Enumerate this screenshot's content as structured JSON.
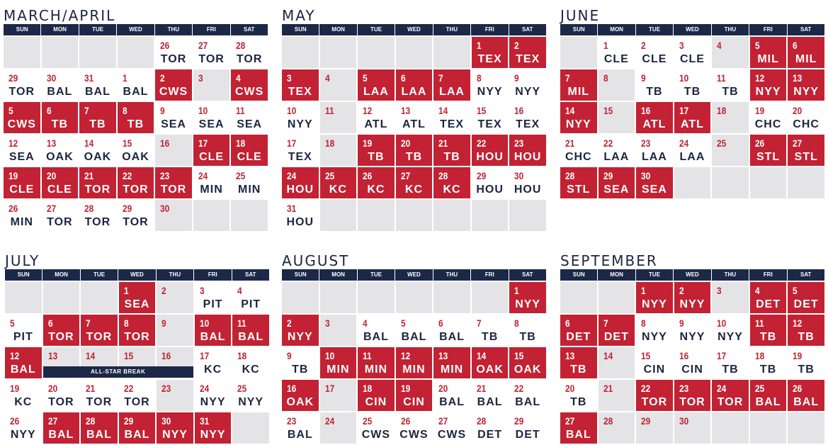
{
  "weekdays": [
    "SUN",
    "MON",
    "TUE",
    "WED",
    "THU",
    "FRI",
    "SAT"
  ],
  "months": [
    {
      "title": "MARCH/APRIL",
      "rows": [
        [
          null,
          null,
          null,
          null,
          {
            "d": "26",
            "o": "TOR",
            "h": false
          },
          {
            "d": "27",
            "o": "TOR",
            "h": false
          },
          {
            "d": "28",
            "o": "TOR",
            "h": false
          }
        ],
        [
          {
            "d": "29",
            "o": "TOR",
            "h": false
          },
          {
            "d": "30",
            "o": "BAL",
            "h": false
          },
          {
            "d": "31",
            "o": "BAL",
            "h": false
          },
          {
            "d": "1",
            "o": "BAL",
            "h": false
          },
          {
            "d": "2",
            "o": "CWS",
            "h": true
          },
          {
            "d": "3",
            "o": "",
            "h": false,
            "off": true
          },
          {
            "d": "4",
            "o": "CWS",
            "h": true
          }
        ],
        [
          {
            "d": "5",
            "o": "CWS",
            "h": true
          },
          {
            "d": "6",
            "o": "TB",
            "h": true
          },
          {
            "d": "7",
            "o": "TB",
            "h": true
          },
          {
            "d": "8",
            "o": "TB",
            "h": true
          },
          {
            "d": "9",
            "o": "SEA",
            "h": false
          },
          {
            "d": "10",
            "o": "SEA",
            "h": false
          },
          {
            "d": "11",
            "o": "SEA",
            "h": false
          }
        ],
        [
          {
            "d": "12",
            "o": "SEA",
            "h": false
          },
          {
            "d": "13",
            "o": "OAK",
            "h": false
          },
          {
            "d": "14",
            "o": "OAK",
            "h": false
          },
          {
            "d": "15",
            "o": "OAK",
            "h": false
          },
          {
            "d": "16",
            "o": "",
            "h": false,
            "off": true
          },
          {
            "d": "17",
            "o": "CLE",
            "h": true
          },
          {
            "d": "18",
            "o": "CLE",
            "h": true
          }
        ],
        [
          {
            "d": "19",
            "o": "CLE",
            "h": true
          },
          {
            "d": "20",
            "o": "CLE",
            "h": true
          },
          {
            "d": "21",
            "o": "TOR",
            "h": true
          },
          {
            "d": "22",
            "o": "TOR",
            "h": true
          },
          {
            "d": "23",
            "o": "TOR",
            "h": true
          },
          {
            "d": "24",
            "o": "MIN",
            "h": false
          },
          {
            "d": "25",
            "o": "MIN",
            "h": false
          }
        ],
        [
          {
            "d": "26",
            "o": "MIN",
            "h": false
          },
          {
            "d": "27",
            "o": "TOR",
            "h": false
          },
          {
            "d": "28",
            "o": "TOR",
            "h": false
          },
          {
            "d": "29",
            "o": "TOR",
            "h": false
          },
          {
            "d": "30",
            "o": "",
            "h": false,
            "off": true
          },
          null,
          null
        ]
      ]
    },
    {
      "title": "MAY",
      "rows": [
        [
          null,
          null,
          null,
          null,
          null,
          {
            "d": "1",
            "o": "TEX",
            "h": true
          },
          {
            "d": "2",
            "o": "TEX",
            "h": true
          }
        ],
        [
          {
            "d": "3",
            "o": "TEX",
            "h": true
          },
          {
            "d": "4",
            "o": "",
            "h": false,
            "off": true
          },
          {
            "d": "5",
            "o": "LAA",
            "h": true
          },
          {
            "d": "6",
            "o": "LAA",
            "h": true
          },
          {
            "d": "7",
            "o": "LAA",
            "h": true
          },
          {
            "d": "8",
            "o": "NYY",
            "h": false
          },
          {
            "d": "9",
            "o": "NYY",
            "h": false
          }
        ],
        [
          {
            "d": "10",
            "o": "NYY",
            "h": false
          },
          {
            "d": "11",
            "o": "",
            "h": false,
            "off": true
          },
          {
            "d": "12",
            "o": "ATL",
            "h": false
          },
          {
            "d": "13",
            "o": "ATL",
            "h": false
          },
          {
            "d": "14",
            "o": "TEX",
            "h": false
          },
          {
            "d": "15",
            "o": "TEX",
            "h": false
          },
          {
            "d": "16",
            "o": "TEX",
            "h": false
          }
        ],
        [
          {
            "d": "17",
            "o": "TEX",
            "h": false
          },
          {
            "d": "18",
            "o": "",
            "h": false,
            "off": true
          },
          {
            "d": "19",
            "o": "TB",
            "h": true
          },
          {
            "d": "20",
            "o": "TB",
            "h": true
          },
          {
            "d": "21",
            "o": "TB",
            "h": true
          },
          {
            "d": "22",
            "o": "HOU",
            "h": true
          },
          {
            "d": "23",
            "o": "HOU",
            "h": true
          }
        ],
        [
          {
            "d": "24",
            "o": "HOU",
            "h": true
          },
          {
            "d": "25",
            "o": "KC",
            "h": true
          },
          {
            "d": "26",
            "o": "KC",
            "h": true
          },
          {
            "d": "27",
            "o": "KC",
            "h": true
          },
          {
            "d": "28",
            "o": "KC",
            "h": true
          },
          {
            "d": "29",
            "o": "HOU",
            "h": false
          },
          {
            "d": "30",
            "o": "HOU",
            "h": false
          }
        ],
        [
          {
            "d": "31",
            "o": "HOU",
            "h": false
          },
          null,
          null,
          null,
          null,
          null,
          null
        ]
      ]
    },
    {
      "title": "JUNE",
      "rows": [
        [
          null,
          {
            "d": "1",
            "o": "CLE",
            "h": false
          },
          {
            "d": "2",
            "o": "CLE",
            "h": false
          },
          {
            "d": "3",
            "o": "CLE",
            "h": false
          },
          {
            "d": "4",
            "o": "",
            "h": false,
            "off": true
          },
          {
            "d": "5",
            "o": "MIL",
            "h": true
          },
          {
            "d": "6",
            "o": "MIL",
            "h": true
          }
        ],
        [
          {
            "d": "7",
            "o": "MIL",
            "h": true
          },
          {
            "d": "8",
            "o": "",
            "h": false,
            "off": true
          },
          {
            "d": "9",
            "o": "TB",
            "h": false
          },
          {
            "d": "10",
            "o": "TB",
            "h": false
          },
          {
            "d": "11",
            "o": "TB",
            "h": false
          },
          {
            "d": "12",
            "o": "NYY",
            "h": true
          },
          {
            "d": "13",
            "o": "NYY",
            "h": true
          }
        ],
        [
          {
            "d": "14",
            "o": "NYY",
            "h": true
          },
          {
            "d": "15",
            "o": "",
            "h": false,
            "off": true
          },
          {
            "d": "16",
            "o": "ATL",
            "h": true
          },
          {
            "d": "17",
            "o": "ATL",
            "h": true
          },
          {
            "d": "18",
            "o": "",
            "h": false,
            "off": true
          },
          {
            "d": "19",
            "o": "CHC",
            "h": false
          },
          {
            "d": "20",
            "o": "CHC",
            "h": false
          }
        ],
        [
          {
            "d": "21",
            "o": "CHC",
            "h": false
          },
          {
            "d": "22",
            "o": "LAA",
            "h": false
          },
          {
            "d": "23",
            "o": "LAA",
            "h": false
          },
          {
            "d": "24",
            "o": "LAA",
            "h": false
          },
          {
            "d": "25",
            "o": "",
            "h": false,
            "off": true
          },
          {
            "d": "26",
            "o": "STL",
            "h": true
          },
          {
            "d": "27",
            "o": "STL",
            "h": true
          }
        ],
        [
          {
            "d": "28",
            "o": "STL",
            "h": true
          },
          {
            "d": "29",
            "o": "SEA",
            "h": true
          },
          {
            "d": "30",
            "o": "SEA",
            "h": true
          },
          null,
          null,
          null,
          null
        ]
      ]
    },
    {
      "title": "JULY",
      "banner": "ALL-STAR BREAK",
      "rows": [
        [
          null,
          null,
          null,
          {
            "d": "1",
            "o": "SEA",
            "h": true
          },
          {
            "d": "2",
            "o": "",
            "h": false,
            "off": true
          },
          {
            "d": "3",
            "o": "PIT",
            "h": false
          },
          {
            "d": "4",
            "o": "PIT",
            "h": false
          }
        ],
        [
          {
            "d": "5",
            "o": "PIT",
            "h": false
          },
          {
            "d": "6",
            "o": "TOR",
            "h": true
          },
          {
            "d": "7",
            "o": "TOR",
            "h": true
          },
          {
            "d": "8",
            "o": "TOR",
            "h": true
          },
          {
            "d": "9",
            "o": "",
            "h": false,
            "off": true
          },
          {
            "d": "10",
            "o": "BAL",
            "h": true
          },
          {
            "d": "11",
            "o": "BAL",
            "h": true
          }
        ],
        [
          {
            "d": "12",
            "o": "BAL",
            "h": true
          },
          {
            "d": "13",
            "o": "",
            "h": false,
            "off": true
          },
          {
            "d": "14",
            "o": "",
            "h": false,
            "off": true
          },
          {
            "d": "15",
            "o": "",
            "h": false,
            "off": true
          },
          {
            "d": "16",
            "o": "",
            "h": false,
            "off": true
          },
          {
            "d": "17",
            "o": "KC",
            "h": false
          },
          {
            "d": "18",
            "o": "KC",
            "h": false
          }
        ],
        [
          {
            "d": "19",
            "o": "KC",
            "h": false
          },
          {
            "d": "20",
            "o": "TOR",
            "h": false
          },
          {
            "d": "21",
            "o": "TOR",
            "h": false
          },
          {
            "d": "22",
            "o": "TOR",
            "h": false
          },
          {
            "d": "23",
            "o": "",
            "h": false,
            "off": true
          },
          {
            "d": "24",
            "o": "NYY",
            "h": false
          },
          {
            "d": "25",
            "o": "NYY",
            "h": false
          }
        ],
        [
          {
            "d": "26",
            "o": "NYY",
            "h": false
          },
          {
            "d": "27",
            "o": "BAL",
            "h": true
          },
          {
            "d": "28",
            "o": "BAL",
            "h": true
          },
          {
            "d": "29",
            "o": "BAL",
            "h": true
          },
          {
            "d": "30",
            "o": "NYY",
            "h": true
          },
          {
            "d": "31",
            "o": "NYY",
            "h": true
          },
          null
        ]
      ]
    },
    {
      "title": "AUGUST",
      "rows": [
        [
          null,
          null,
          null,
          null,
          null,
          null,
          {
            "d": "1",
            "o": "NYY",
            "h": true
          }
        ],
        [
          {
            "d": "2",
            "o": "NYY",
            "h": true
          },
          {
            "d": "3",
            "o": "",
            "h": false,
            "off": true
          },
          {
            "d": "4",
            "o": "BAL",
            "h": false
          },
          {
            "d": "5",
            "o": "BAL",
            "h": false
          },
          {
            "d": "6",
            "o": "BAL",
            "h": false
          },
          {
            "d": "7",
            "o": "TB",
            "h": false
          },
          {
            "d": "8",
            "o": "TB",
            "h": false
          }
        ],
        [
          {
            "d": "9",
            "o": "TB",
            "h": false
          },
          {
            "d": "10",
            "o": "MIN",
            "h": true
          },
          {
            "d": "11",
            "o": "MIN",
            "h": true
          },
          {
            "d": "12",
            "o": "MIN",
            "h": true
          },
          {
            "d": "13",
            "o": "MIN",
            "h": true
          },
          {
            "d": "14",
            "o": "OAK",
            "h": true
          },
          {
            "d": "15",
            "o": "OAK",
            "h": true
          }
        ],
        [
          {
            "d": "16",
            "o": "OAK",
            "h": true
          },
          {
            "d": "17",
            "o": "",
            "h": false,
            "off": true
          },
          {
            "d": "18",
            "o": "CIN",
            "h": true
          },
          {
            "d": "19",
            "o": "CIN",
            "h": true
          },
          {
            "d": "20",
            "o": "BAL",
            "h": false
          },
          {
            "d": "21",
            "o": "BAL",
            "h": false
          },
          {
            "d": "22",
            "o": "BAL",
            "h": false
          }
        ],
        [
          {
            "d": "23",
            "o": "BAL",
            "h": false
          },
          {
            "d": "24",
            "o": "",
            "h": false,
            "off": true
          },
          {
            "d": "25",
            "o": "CWS",
            "h": false
          },
          {
            "d": "26",
            "o": "CWS",
            "h": false
          },
          {
            "d": "27",
            "o": "CWS",
            "h": false
          },
          {
            "d": "28",
            "o": "DET",
            "h": false
          },
          {
            "d": "29",
            "o": "DET",
            "h": false
          }
        ]
      ]
    },
    {
      "title": "SEPTEMBER",
      "rows": [
        [
          null,
          null,
          {
            "d": "1",
            "o": "NYY",
            "h": true
          },
          {
            "d": "2",
            "o": "NYY",
            "h": true
          },
          {
            "d": "3",
            "o": "",
            "h": false,
            "off": true
          },
          {
            "d": "4",
            "o": "DET",
            "h": true
          },
          {
            "d": "5",
            "o": "DET",
            "h": true
          }
        ],
        [
          {
            "d": "6",
            "o": "DET",
            "h": true
          },
          {
            "d": "7",
            "o": "DET",
            "h": true
          },
          {
            "d": "8",
            "o": "NYY",
            "h": false
          },
          {
            "d": "9",
            "o": "NYY",
            "h": false
          },
          {
            "d": "10",
            "o": "NYY",
            "h": false
          },
          {
            "d": "11",
            "o": "TB",
            "h": true
          },
          {
            "d": "12",
            "o": "TB",
            "h": true
          }
        ],
        [
          {
            "d": "13",
            "o": "TB",
            "h": true
          },
          {
            "d": "14",
            "o": "",
            "h": false,
            "off": true
          },
          {
            "d": "15",
            "o": "CIN",
            "h": false
          },
          {
            "d": "16",
            "o": "CIN",
            "h": false
          },
          {
            "d": "17",
            "o": "TB",
            "h": false
          },
          {
            "d": "18",
            "o": "TB",
            "h": false
          },
          {
            "d": "19",
            "o": "TB",
            "h": false
          }
        ],
        [
          {
            "d": "20",
            "o": "TB",
            "h": false
          },
          {
            "d": "21",
            "o": "",
            "h": false,
            "off": true
          },
          {
            "d": "22",
            "o": "TOR",
            "h": true
          },
          {
            "d": "23",
            "o": "TOR",
            "h": true
          },
          {
            "d": "24",
            "o": "TOR",
            "h": true
          },
          {
            "d": "25",
            "o": "BAL",
            "h": true
          },
          {
            "d": "26",
            "o": "BAL",
            "h": true
          }
        ],
        [
          {
            "d": "27",
            "o": "BAL",
            "h": true
          },
          {
            "d": "28",
            "o": "",
            "h": false,
            "off": true
          },
          {
            "d": "29",
            "o": "",
            "h": false,
            "off": true
          },
          {
            "d": "30",
            "o": "",
            "h": false,
            "off": true
          },
          null,
          null,
          null
        ]
      ]
    }
  ]
}
